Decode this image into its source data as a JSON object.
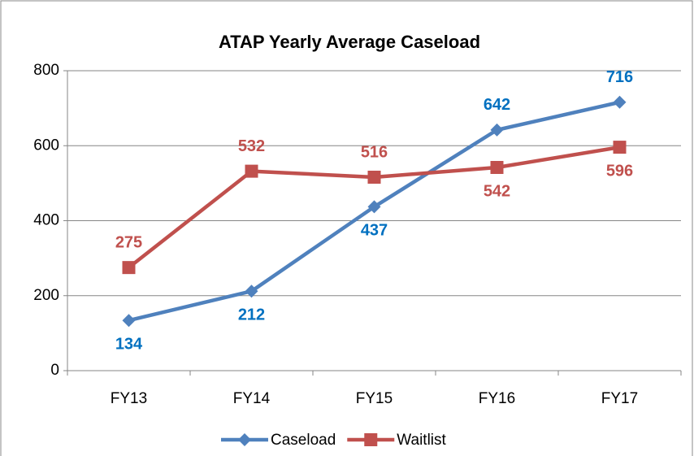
{
  "chart_data": {
    "type": "line",
    "title": "ATAP Yearly Average Caseload",
    "categories": [
      "FY13",
      "FY14",
      "FY15",
      "FY16",
      "FY17"
    ],
    "series": [
      {
        "name": "Caseload",
        "color": "#4f81bd",
        "label_color": "#0070c0",
        "marker": "diamond",
        "values": [
          134,
          212,
          437,
          642,
          716
        ]
      },
      {
        "name": "Waitlist",
        "color": "#c0504d",
        "label_color": "#c0504d",
        "marker": "square",
        "values": [
          275,
          532,
          516,
          542,
          596
        ]
      }
    ],
    "ylim": [
      0,
      800
    ],
    "yticks": [
      0,
      200,
      400,
      600,
      800
    ],
    "grid": true,
    "legend": "bottom"
  }
}
